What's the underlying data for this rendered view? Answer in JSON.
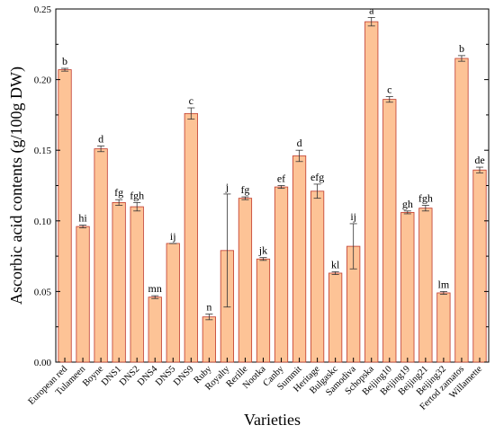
{
  "chart_data": {
    "type": "bar",
    "xlabel": "Varieties",
    "ylabel": "Ascorbic acid contents (g/100g DW)",
    "ylim": [
      0,
      0.25
    ],
    "yticks": [
      "0.00",
      "0.05",
      "0.10",
      "0.15",
      "0.20",
      "0.25"
    ],
    "bar_color": "#fdc396",
    "bar_edge_color": "#c0392b",
    "categories": [
      "European red",
      "Tulameen",
      "Boyne",
      "DNS1",
      "DNS2",
      "DNS4",
      "DNS5",
      "DNS9",
      "Ruby",
      "Royalty",
      "Rerille",
      "Nootka",
      "Canby",
      "Summit",
      "Heritage",
      "Bulgaskc",
      "Samodiva",
      "Schopska",
      "Beijing10",
      "Beijing19",
      "Beijing21",
      "Beijing32",
      "Fertod zamatos",
      "Willamette"
    ],
    "values": [
      0.207,
      0.096,
      0.151,
      0.113,
      0.11,
      0.046,
      0.084,
      0.176,
      0.032,
      0.079,
      0.116,
      0.073,
      0.124,
      0.146,
      0.121,
      0.063,
      0.082,
      0.241,
      0.186,
      0.106,
      0.109,
      0.049,
      0.215,
      0.136
    ],
    "errors": [
      0.001,
      0.001,
      0.002,
      0.002,
      0.003,
      0.001,
      0.0,
      0.004,
      0.002,
      0.04,
      0.001,
      0.001,
      0.001,
      0.004,
      0.005,
      0.001,
      0.016,
      0.003,
      0.002,
      0.001,
      0.002,
      0.001,
      0.002,
      0.002
    ],
    "letters": [
      "b",
      "hi",
      "d",
      "fg",
      "fgh",
      "mn",
      "ij",
      "c",
      "n",
      "j",
      "fg",
      "jk",
      "ef",
      "d",
      "efg",
      "kl",
      "ij",
      "a",
      "c",
      "gh",
      "fgh",
      "lm",
      "b",
      "de"
    ]
  }
}
